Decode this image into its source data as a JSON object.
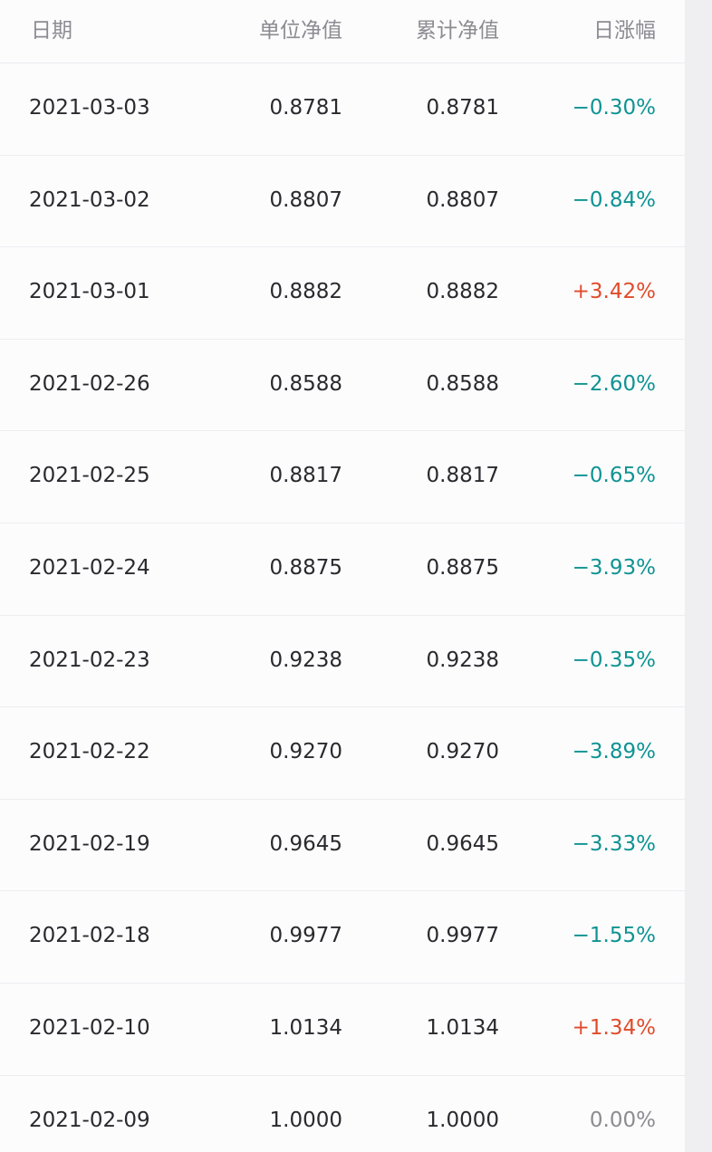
{
  "colors": {
    "up": "#e04b2a",
    "down": "#0f9392",
    "flat": "#8b8b92"
  },
  "table": {
    "headers": {
      "date": "日期",
      "unit_nav": "单位净值",
      "cumulative_nav": "累计净值",
      "daily_change": "日涨幅"
    },
    "rows": [
      {
        "date": "2021-03-03",
        "unit_nav": "0.8781",
        "cumulative_nav": "0.8781",
        "daily_change": "−0.30%",
        "direction": "down"
      },
      {
        "date": "2021-03-02",
        "unit_nav": "0.8807",
        "cumulative_nav": "0.8807",
        "daily_change": "−0.84%",
        "direction": "down"
      },
      {
        "date": "2021-03-01",
        "unit_nav": "0.8882",
        "cumulative_nav": "0.8882",
        "daily_change": "+3.42%",
        "direction": "up"
      },
      {
        "date": "2021-02-26",
        "unit_nav": "0.8588",
        "cumulative_nav": "0.8588",
        "daily_change": "−2.60%",
        "direction": "down"
      },
      {
        "date": "2021-02-25",
        "unit_nav": "0.8817",
        "cumulative_nav": "0.8817",
        "daily_change": "−0.65%",
        "direction": "down"
      },
      {
        "date": "2021-02-24",
        "unit_nav": "0.8875",
        "cumulative_nav": "0.8875",
        "daily_change": "−3.93%",
        "direction": "down"
      },
      {
        "date": "2021-02-23",
        "unit_nav": "0.9238",
        "cumulative_nav": "0.9238",
        "daily_change": "−0.35%",
        "direction": "down"
      },
      {
        "date": "2021-02-22",
        "unit_nav": "0.9270",
        "cumulative_nav": "0.9270",
        "daily_change": "−3.89%",
        "direction": "down"
      },
      {
        "date": "2021-02-19",
        "unit_nav": "0.9645",
        "cumulative_nav": "0.9645",
        "daily_change": "−3.33%",
        "direction": "down"
      },
      {
        "date": "2021-02-18",
        "unit_nav": "0.9977",
        "cumulative_nav": "0.9977",
        "daily_change": "−1.55%",
        "direction": "down"
      },
      {
        "date": "2021-02-10",
        "unit_nav": "1.0134",
        "cumulative_nav": "1.0134",
        "daily_change": "+1.34%",
        "direction": "up"
      },
      {
        "date": "2021-02-09",
        "unit_nav": "1.0000",
        "cumulative_nav": "1.0000",
        "daily_change": "0.00%",
        "direction": "flat"
      }
    ]
  }
}
